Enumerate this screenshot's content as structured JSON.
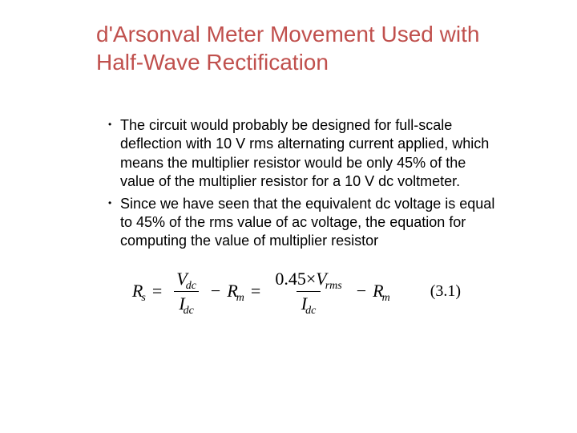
{
  "title": "d'Arsonval Meter Movement Used with Half-Wave Rectification",
  "bullets": [
    "The circuit would probably be designed for full-scale deflection with 10 V rms alternating current applied, which means the multiplier resistor would be only 45% of the value of the multiplier resistor for a 10 V dc voltmeter.",
    "Since we have seen that the equivalent dc voltage is equal to 45% of the rms value of ac voltage, the equation for computing the value of multiplier resistor"
  ],
  "equation": {
    "lhs_var": "R",
    "lhs_sub": "s",
    "eq": "=",
    "frac1_num_var": "V",
    "frac1_num_sub": "dc",
    "frac1_den_var": "I",
    "frac1_den_sub": "dc",
    "minus": "−",
    "rm_var": "R",
    "rm_sub": "m",
    "frac2_num_coeff": "0.45",
    "frac2_num_times": "×",
    "frac2_num_var": "V",
    "frac2_num_sub": "rms",
    "frac2_den_var": "I",
    "frac2_den_sub": "dc",
    "ref": "(3.1)"
  },
  "style": {
    "title_color": "#c0504d",
    "title_fontsize": 28,
    "body_fontsize": 18,
    "eq_fontsize": 22,
    "text_color": "#000000",
    "background_color": "#ffffff"
  }
}
